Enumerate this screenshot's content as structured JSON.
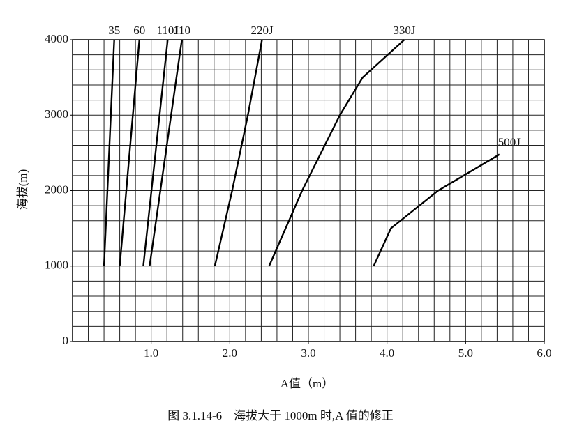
{
  "chart_data": {
    "type": "line",
    "caption": "图 3.1.14-6　海拔大于 1000m 时,A 值的修正",
    "xlabel": "A值（m）",
    "ylabel": "海拔(m)",
    "xlim": [
      0,
      6
    ],
    "ylim": [
      0,
      4000
    ],
    "xticks": [
      {
        "value": 1,
        "label": "1.0"
      },
      {
        "value": 2,
        "label": "2.0"
      },
      {
        "value": 3,
        "label": "3.0"
      },
      {
        "value": 4,
        "label": "4.0"
      },
      {
        "value": 5,
        "label": "5.0"
      },
      {
        "value": 6,
        "label": "6.0"
      }
    ],
    "yticks": [
      0,
      1000,
      2000,
      3000,
      4000
    ],
    "grid": {
      "x_step": 0.2,
      "y_step": 200
    },
    "series": [
      {
        "name": "35",
        "color": "#000000",
        "x": [
          0.4,
          0.53
        ],
        "values": [
          1000,
          4000
        ]
      },
      {
        "name": "60",
        "color": "#000000",
        "x": [
          0.6,
          0.85
        ],
        "values": [
          1000,
          4000
        ]
      },
      {
        "name": "110J",
        "color": "#000000",
        "x": [
          0.9,
          1.21
        ],
        "values": [
          1000,
          4000
        ]
      },
      {
        "name": "110",
        "color": "#000000",
        "x": [
          0.98,
          1.39
        ],
        "values": [
          1000,
          4000
        ]
      },
      {
        "name": "220J",
        "color": "#000000",
        "x": [
          1.81,
          2.03,
          2.23,
          2.41
        ],
        "values": [
          1000,
          2000,
          3000,
          4000
        ]
      },
      {
        "name": "330J",
        "color": "#000000",
        "x": [
          2.5,
          2.92,
          3.4,
          3.69,
          4.22
        ],
        "values": [
          1000,
          2000,
          3000,
          3500,
          4000
        ]
      },
      {
        "name": "500J",
        "color": "#000000",
        "x": [
          3.83,
          4.05,
          4.65,
          5.43
        ],
        "values": [
          1000,
          1500,
          2000,
          2480
        ]
      }
    ]
  }
}
